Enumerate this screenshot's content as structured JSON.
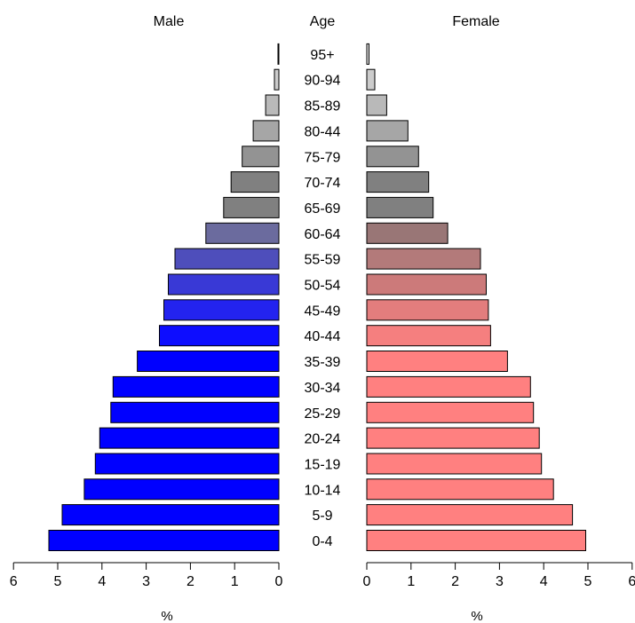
{
  "chart_data": {
    "type": "bar",
    "orientation": "horizontal",
    "subtype": "population-pyramid",
    "headers": {
      "left": "Male",
      "center": "Age",
      "right": "Female"
    },
    "categories": [
      "0-4",
      "5-9",
      "10-14",
      "15-19",
      "20-24",
      "25-29",
      "30-34",
      "35-39",
      "40-44",
      "45-49",
      "50-54",
      "55-59",
      "60-64",
      "65-69",
      "70-74",
      "75-79",
      "80-44",
      "85-89",
      "90-94",
      "95+"
    ],
    "series": [
      {
        "name": "Male",
        "values": [
          5.2,
          4.9,
          4.4,
          4.15,
          4.05,
          3.8,
          3.75,
          3.2,
          2.7,
          2.6,
          2.5,
          2.35,
          1.65,
          1.25,
          1.08,
          0.83,
          0.58,
          0.3,
          0.1,
          0.02
        ],
        "colors": [
          "#0000ff",
          "#0000ff",
          "#0000ff",
          "#0000ff",
          "#0000ff",
          "#0000ff",
          "#0000ff",
          "#0000ff",
          "#0d0dff",
          "#2323ef",
          "#3939d6",
          "#4e4ebb",
          "#6b6b9e",
          "#808080",
          "#808080",
          "#939393",
          "#a6a6a6",
          "#b9b9b9",
          "#cccccc",
          "#e6e6e6"
        ]
      },
      {
        "name": "Female",
        "values": [
          4.95,
          4.65,
          4.22,
          3.95,
          3.9,
          3.77,
          3.7,
          3.18,
          2.8,
          2.75,
          2.7,
          2.57,
          1.83,
          1.5,
          1.4,
          1.17,
          0.93,
          0.45,
          0.18,
          0.05
        ],
        "colors": [
          "#ff8080",
          "#ff8080",
          "#ff8080",
          "#ff8080",
          "#ff8080",
          "#ff8080",
          "#ff8080",
          "#ff8080",
          "#f57f7f",
          "#e37d7d",
          "#cc7a7a",
          "#b37a7a",
          "#997676",
          "#808080",
          "#808080",
          "#939393",
          "#a6a6a6",
          "#b9b9b9",
          "#cccccc",
          "#e6e6e6"
        ]
      }
    ],
    "xlim": [
      0,
      6
    ],
    "xticks": [
      0,
      1,
      2,
      3,
      4,
      5,
      6
    ],
    "xlabel": "%",
    "grid": false,
    "legend": "none"
  }
}
